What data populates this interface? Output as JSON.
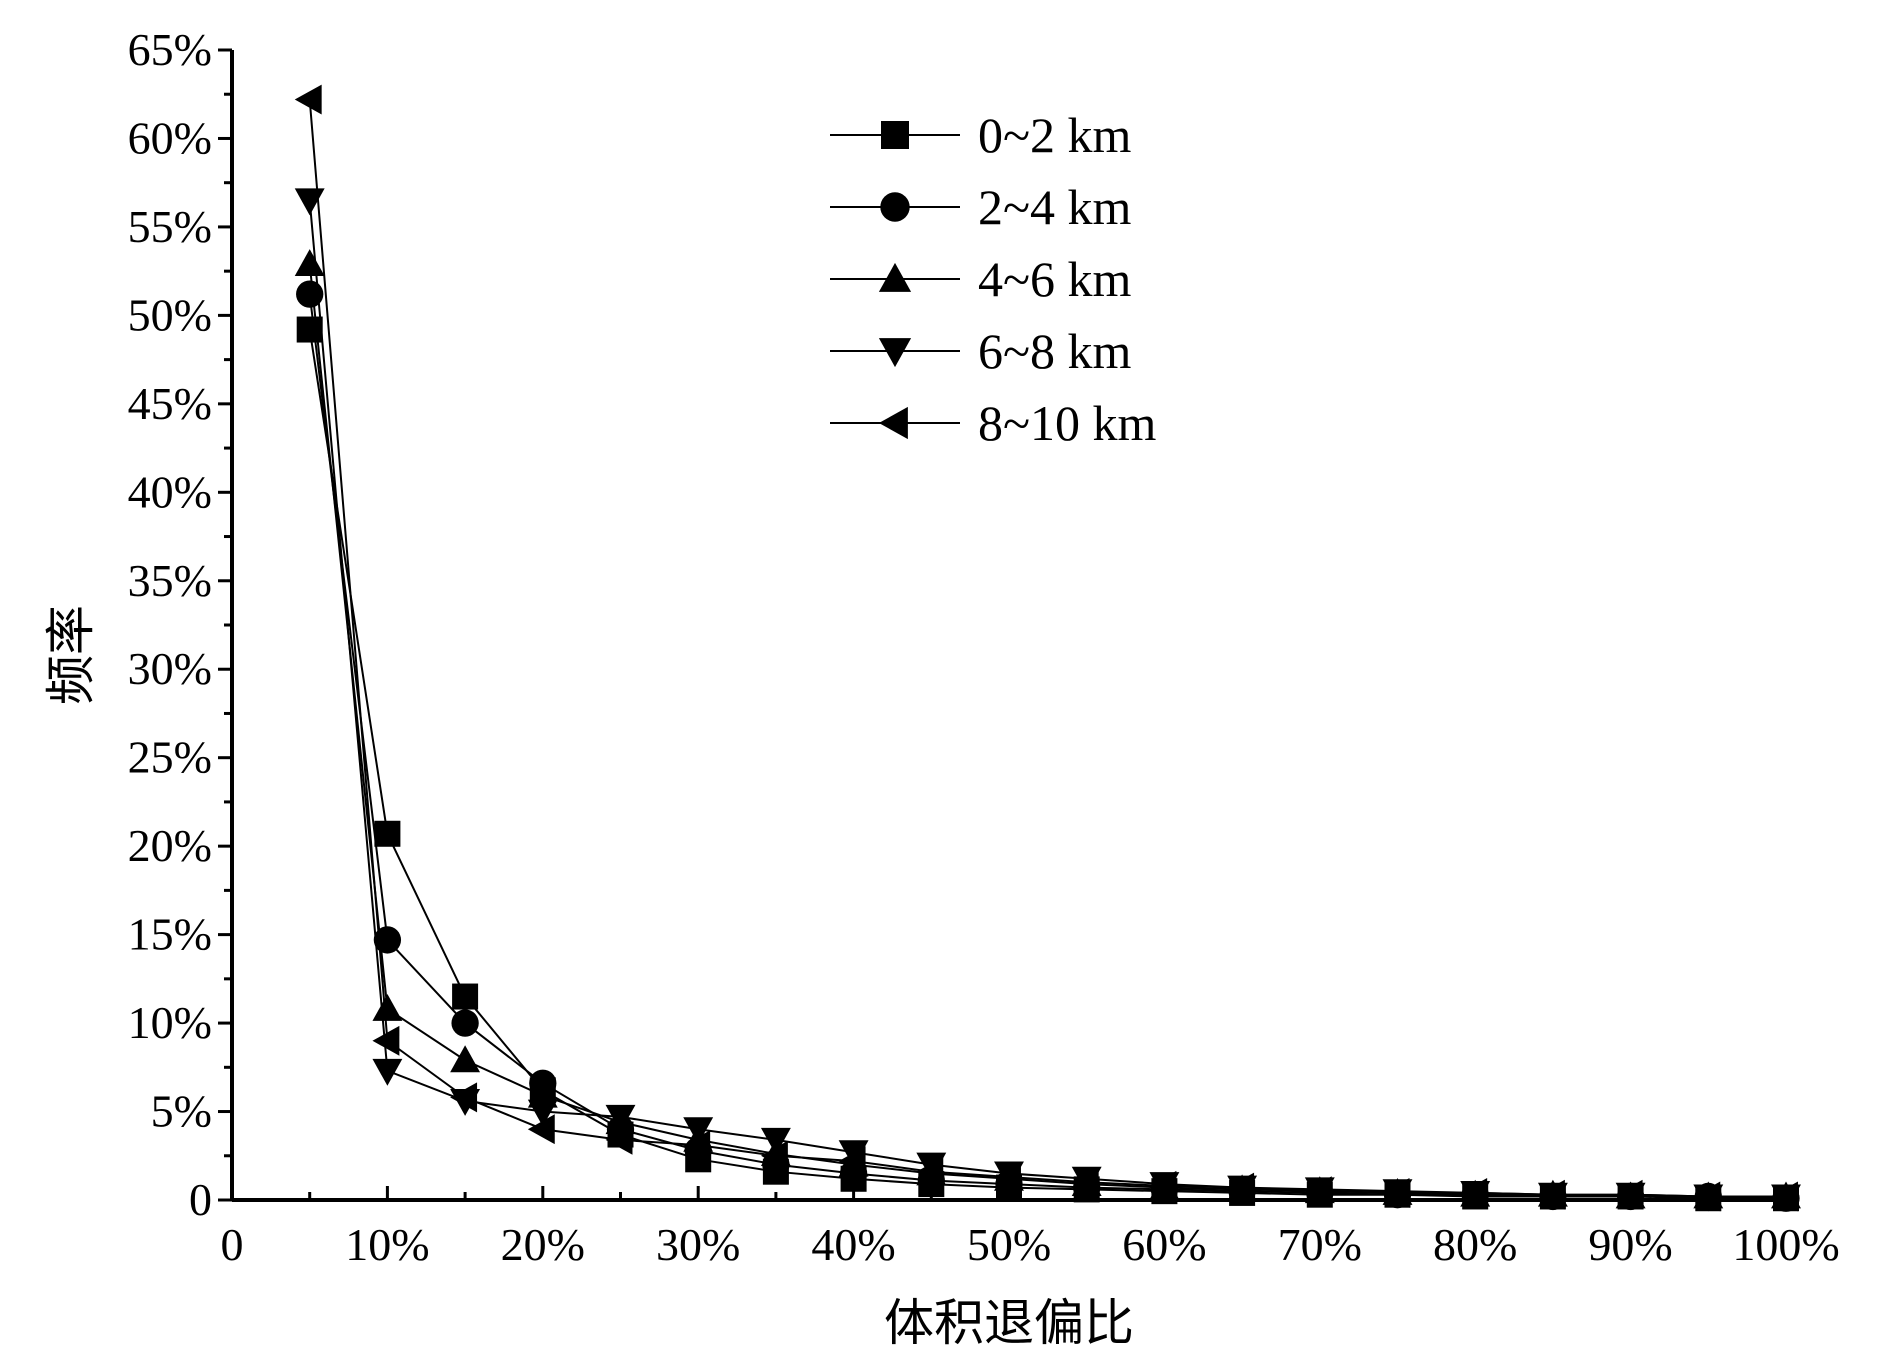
{
  "chart_data": {
    "type": "line",
    "xlabel": "体积退偏比",
    "ylabel": "频率",
    "xlim": [
      0,
      1
    ],
    "ylim": [
      0,
      0.65
    ],
    "x_ticks": [
      {
        "v": 0,
        "label": "0"
      },
      {
        "v": 0.1,
        "label": "10%"
      },
      {
        "v": 0.2,
        "label": "20%"
      },
      {
        "v": 0.3,
        "label": "30%"
      },
      {
        "v": 0.4,
        "label": "40%"
      },
      {
        "v": 0.5,
        "label": "50%"
      },
      {
        "v": 0.6,
        "label": "60%"
      },
      {
        "v": 0.7,
        "label": "70%"
      },
      {
        "v": 0.8,
        "label": "80%"
      },
      {
        "v": 0.9,
        "label": "90%"
      },
      {
        "v": 1.0,
        "label": "100%"
      }
    ],
    "y_ticks": [
      {
        "v": 0,
        "label": "0"
      },
      {
        "v": 0.05,
        "label": "5%"
      },
      {
        "v": 0.1,
        "label": "10%"
      },
      {
        "v": 0.15,
        "label": "15%"
      },
      {
        "v": 0.2,
        "label": "20%"
      },
      {
        "v": 0.25,
        "label": "25%"
      },
      {
        "v": 0.3,
        "label": "30%"
      },
      {
        "v": 0.35,
        "label": "35%"
      },
      {
        "v": 0.4,
        "label": "40%"
      },
      {
        "v": 0.45,
        "label": "45%"
      },
      {
        "v": 0.5,
        "label": "50%"
      },
      {
        "v": 0.55,
        "label": "55%"
      },
      {
        "v": 0.6,
        "label": "60%"
      },
      {
        "v": 0.65,
        "label": "65%"
      }
    ],
    "x": [
      0.05,
      0.1,
      0.15,
      0.2,
      0.25,
      0.3,
      0.35,
      0.4,
      0.45,
      0.5,
      0.55,
      0.6,
      0.65,
      0.7,
      0.75,
      0.8,
      0.85,
      0.9,
      0.95,
      1.0
    ],
    "legend_position": "top-center",
    "series": [
      {
        "name": "0~2 km",
        "marker": "square",
        "values": [
          0.492,
          0.207,
          0.115,
          0.062,
          0.037,
          0.023,
          0.016,
          0.012,
          0.009,
          0.007,
          0.006,
          0.005,
          0.004,
          0.003,
          0.003,
          0.002,
          0.002,
          0.002,
          0.001,
          0.001
        ]
      },
      {
        "name": "2~4 km",
        "marker": "circle",
        "values": [
          0.512,
          0.147,
          0.1,
          0.066,
          0.04,
          0.028,
          0.02,
          0.015,
          0.011,
          0.009,
          0.007,
          0.006,
          0.005,
          0.004,
          0.003,
          0.003,
          0.002,
          0.002,
          0.002,
          0.001
        ]
      },
      {
        "name": "4~6 km",
        "marker": "triangle-up",
        "values": [
          0.529,
          0.108,
          0.079,
          0.059,
          0.044,
          0.034,
          0.026,
          0.02,
          0.015,
          0.012,
          0.009,
          0.007,
          0.006,
          0.005,
          0.004,
          0.003,
          0.003,
          0.002,
          0.002,
          0.002
        ]
      },
      {
        "name": "6~8 km",
        "marker": "triangle-down",
        "values": [
          0.565,
          0.073,
          0.056,
          0.05,
          0.047,
          0.04,
          0.034,
          0.027,
          0.02,
          0.015,
          0.012,
          0.009,
          0.007,
          0.006,
          0.005,
          0.004,
          0.003,
          0.003,
          0.002,
          0.002
        ]
      },
      {
        "name": "8~10 km",
        "marker": "triangle-left",
        "values": [
          0.622,
          0.09,
          0.058,
          0.04,
          0.034,
          0.031,
          0.025,
          0.022,
          0.016,
          0.013,
          0.01,
          0.008,
          0.007,
          0.005,
          0.004,
          0.004,
          0.003,
          0.003,
          0.002,
          0.002
        ]
      }
    ]
  }
}
